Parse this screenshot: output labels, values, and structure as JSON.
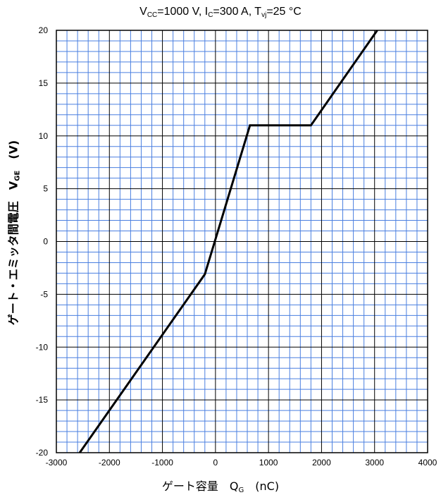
{
  "chart_data": {
    "type": "line",
    "title": {
      "pre": "V",
      "vcc_sub": "CC",
      "mid1": "=1000 V, I",
      "ic_sub": "C",
      "mid2": "=300 A, T",
      "tvj_sub": "vj",
      "post": "=25 °C"
    },
    "xlabel": {
      "main": "ゲート容量　Q",
      "sub": "G",
      "unit": "　(nC)"
    },
    "ylabel": {
      "main": "ゲート・エミッタ間電圧　V",
      "sub": "GE",
      "unit": "　(V)"
    },
    "xlim": [
      -3000,
      4000
    ],
    "ylim": [
      -20,
      20
    ],
    "x_major_ticks": [
      -3000,
      -2000,
      -1000,
      0,
      1000,
      2000,
      3000,
      4000
    ],
    "y_major_ticks": [
      -20,
      -15,
      -10,
      -5,
      0,
      5,
      10,
      15,
      20
    ],
    "x_tick_labels": [
      "-3000",
      "-2000",
      "-1000",
      "0",
      "1000",
      "2000",
      "3000",
      "4000"
    ],
    "y_tick_labels": [
      "-20",
      "-15",
      "-10",
      "-5",
      "0",
      "5",
      "10",
      "15",
      "20"
    ],
    "x_minor_step": 200,
    "y_minor_step": 1,
    "grid": true,
    "colors": {
      "minor_grid": "#4a7fe0",
      "major_grid": "#000000",
      "line": "#000000"
    },
    "series": [
      {
        "points": [
          {
            "x": -2560,
            "y": -20
          },
          {
            "x": -200,
            "y": -3.1
          },
          {
            "x": 650,
            "y": 11
          },
          {
            "x": 1800,
            "y": 11
          },
          {
            "x": 3050,
            "y": 20
          }
        ]
      }
    ]
  }
}
